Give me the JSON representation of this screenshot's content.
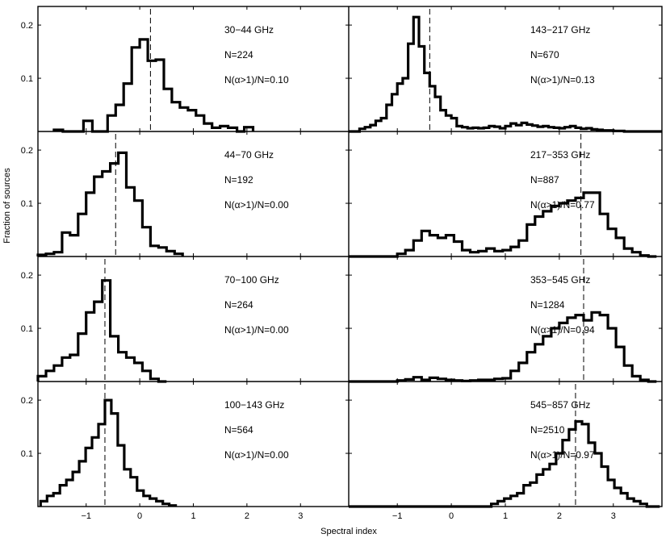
{
  "figure": {
    "ylabel": "Fraction of sources",
    "xlabel": "Spectral index",
    "left_x_ticks": [
      "−1",
      "0",
      "1",
      "2",
      "3"
    ],
    "right_x_ticks": [
      "−1",
      "0",
      "1",
      "2",
      "3"
    ],
    "y_ticks": [
      "0.1",
      "0.2"
    ]
  },
  "chart_data": [
    {
      "type": "bar",
      "title": "30−44 GHz",
      "n_label": "N=224",
      "frac_label": "N(α>1)/N=0.10",
      "median": 0.2,
      "xlim": [
        -1.9,
        3.9
      ],
      "ylim": [
        0,
        0.235
      ],
      "bin_width": 0.165,
      "bins_start": [
        -1.6,
        -1.05,
        -0.6,
        -0.45,
        -0.3,
        -0.15,
        0.0,
        0.15,
        0.3,
        0.45,
        0.6,
        0.75,
        0.9,
        1.05,
        1.2,
        1.35,
        1.5,
        1.65,
        1.95
      ],
      "values": [
        0.003,
        0.02,
        0.03,
        0.05,
        0.09,
        0.158,
        0.173,
        0.133,
        0.135,
        0.08,
        0.055,
        0.045,
        0.04,
        0.03,
        0.015,
        0.007,
        0.01,
        0.007,
        0.008
      ]
    },
    {
      "type": "bar",
      "title": "143−217 GHz",
      "n_label": "N=670",
      "frac_label": "N(α>1)/N=0.13",
      "median": -0.4,
      "xlim": [
        -1.9,
        3.9
      ],
      "ylim": [
        0,
        0.235
      ],
      "bin_width": 0.1,
      "bins_start": [
        -1.9,
        -1.8,
        -1.7,
        -1.6,
        -1.5,
        -1.4,
        -1.3,
        -1.2,
        -1.1,
        -1.0,
        -0.9,
        -0.8,
        -0.7,
        -0.6,
        -0.5,
        -0.4,
        -0.3,
        -0.2,
        -0.1,
        0.0,
        0.1,
        0.2,
        0.3,
        0.4,
        0.5,
        0.6,
        0.7,
        0.8,
        0.9,
        1.0,
        1.1,
        1.2,
        1.3,
        1.4,
        1.5,
        1.6,
        1.7,
        1.8,
        1.9,
        2.0,
        2.1,
        2.2,
        2.3,
        2.4,
        2.5,
        2.6,
        2.7,
        2.8,
        2.9,
        3.0,
        3.1,
        3.2,
        3.3,
        3.4,
        3.5,
        3.6,
        3.7,
        3.8
      ],
      "values": [
        0.0,
        0.0,
        0.005,
        0.008,
        0.012,
        0.02,
        0.025,
        0.05,
        0.07,
        0.09,
        0.1,
        0.165,
        0.215,
        0.16,
        0.11,
        0.085,
        0.065,
        0.04,
        0.03,
        0.025,
        0.01,
        0.008,
        0.006,
        0.007,
        0.006,
        0.007,
        0.01,
        0.009,
        0.006,
        0.01,
        0.015,
        0.012,
        0.016,
        0.013,
        0.011,
        0.009,
        0.01,
        0.008,
        0.007,
        0.006,
        0.008,
        0.01,
        0.007,
        0.005,
        0.006,
        0.004,
        0.003,
        0.002,
        0.002,
        0.001,
        0.001,
        0.0,
        0.0,
        0.0,
        0.0,
        0.0,
        0.0,
        0.0
      ]
    },
    {
      "type": "bar",
      "title": "44−70 GHz",
      "n_label": "N=192",
      "frac_label": "N(α>1)/N=0.00",
      "median": -0.45,
      "xlim": [
        -1.9,
        3.9
      ],
      "ylim": [
        0,
        0.235
      ],
      "bin_width": 0.15,
      "bins_start": [
        -1.9,
        -1.75,
        -1.6,
        -1.45,
        -1.3,
        -1.15,
        -1.0,
        -0.85,
        -0.7,
        -0.55,
        -0.4,
        -0.25,
        -0.1,
        0.05,
        0.2,
        0.35,
        0.5,
        0.65
      ],
      "values": [
        0.003,
        0.005,
        0.008,
        0.045,
        0.04,
        0.08,
        0.12,
        0.15,
        0.16,
        0.175,
        0.195,
        0.13,
        0.105,
        0.055,
        0.02,
        0.017,
        0.01,
        0.005
      ]
    },
    {
      "type": "bar",
      "title": "217−353 GHz",
      "n_label": "N=887",
      "frac_label": "N(α>1)/N=0.77",
      "median": 2.4,
      "xlim": [
        -1.9,
        3.9
      ],
      "ylim": [
        0,
        0.235
      ],
      "bin_width": 0.15,
      "bins_start": [
        -1.9,
        -1.75,
        -1.6,
        -1.45,
        -1.3,
        -1.15,
        -1.0,
        -0.85,
        -0.7,
        -0.55,
        -0.4,
        -0.25,
        -0.1,
        0.05,
        0.2,
        0.35,
        0.5,
        0.65,
        0.8,
        0.95,
        1.1,
        1.25,
        1.4,
        1.55,
        1.7,
        1.85,
        2.0,
        2.15,
        2.3,
        2.45,
        2.6,
        2.75,
        2.9,
        3.05,
        3.2,
        3.35,
        3.5,
        3.65
      ],
      "values": [
        0.0,
        0.0,
        0.0,
        0.0,
        0.0,
        0.0,
        0.005,
        0.012,
        0.03,
        0.048,
        0.04,
        0.035,
        0.04,
        0.028,
        0.012,
        0.008,
        0.01,
        0.015,
        0.01,
        0.012,
        0.018,
        0.03,
        0.06,
        0.075,
        0.085,
        0.095,
        0.1,
        0.105,
        0.11,
        0.12,
        0.12,
        0.08,
        0.052,
        0.035,
        0.015,
        0.008,
        0.002,
        0.0
      ]
    },
    {
      "type": "bar",
      "title": "70−100 GHz",
      "n_label": "N=264",
      "frac_label": "N(α>1)/N=0.00",
      "median": -0.65,
      "xlim": [
        -1.9,
        3.9
      ],
      "ylim": [
        0,
        0.235
      ],
      "bin_width": 0.15,
      "bins_start": [
        -1.9,
        -1.75,
        -1.6,
        -1.45,
        -1.3,
        -1.15,
        -1.0,
        -0.85,
        -0.7,
        -0.55,
        -0.4,
        -0.25,
        -0.1,
        0.05,
        0.2,
        0.35
      ],
      "values": [
        0.01,
        0.02,
        0.03,
        0.045,
        0.05,
        0.09,
        0.13,
        0.15,
        0.19,
        0.085,
        0.055,
        0.045,
        0.035,
        0.02,
        0.005,
        0.0
      ]
    },
    {
      "type": "bar",
      "title": "353−545 GHz",
      "n_label": "N=1284",
      "frac_label": "N(α>1)/N=0.94",
      "median": 2.45,
      "xlim": [
        -1.9,
        3.9
      ],
      "ylim": [
        0,
        0.235
      ],
      "bin_width": 0.15,
      "bins_start": [
        -1.9,
        -1.75,
        -1.6,
        -1.45,
        -1.3,
        -1.15,
        -1.0,
        -0.85,
        -0.7,
        -0.55,
        -0.4,
        -0.25,
        -0.1,
        0.05,
        0.2,
        0.35,
        0.5,
        0.65,
        0.8,
        0.95,
        1.1,
        1.25,
        1.4,
        1.55,
        1.7,
        1.85,
        2.0,
        2.15,
        2.3,
        2.45,
        2.6,
        2.75,
        2.9,
        3.05,
        3.2,
        3.35,
        3.5,
        3.65
      ],
      "values": [
        0.0,
        0.0,
        0.0,
        0.0,
        0.0,
        0.0,
        0.002,
        0.004,
        0.008,
        0.003,
        0.007,
        0.005,
        0.003,
        0.002,
        0.001,
        0.002,
        0.003,
        0.003,
        0.005,
        0.006,
        0.02,
        0.035,
        0.055,
        0.07,
        0.085,
        0.1,
        0.11,
        0.12,
        0.125,
        0.115,
        0.13,
        0.125,
        0.1,
        0.065,
        0.03,
        0.01,
        0.003,
        0.0
      ]
    },
    {
      "type": "bar",
      "title": "100−143 GHz",
      "n_label": "N=564",
      "frac_label": "N(α>1)/N=0.00",
      "median": -0.65,
      "xlim": [
        -1.9,
        3.9
      ],
      "ylim": [
        0,
        0.235
      ],
      "bin_width": 0.12,
      "bins_start": [
        -1.85,
        -1.73,
        -1.61,
        -1.49,
        -1.37,
        -1.25,
        -1.13,
        -1.01,
        -0.89,
        -0.77,
        -0.65,
        -0.53,
        -0.41,
        -0.29,
        -0.17,
        -0.05,
        0.07,
        0.19,
        0.31,
        0.43,
        0.55
      ],
      "values": [
        0.01,
        0.02,
        0.025,
        0.04,
        0.05,
        0.065,
        0.085,
        0.11,
        0.13,
        0.155,
        0.2,
        0.175,
        0.115,
        0.07,
        0.055,
        0.03,
        0.02,
        0.015,
        0.01,
        0.005,
        0.002
      ]
    },
    {
      "type": "bar",
      "title": "545−857 GHz",
      "n_label": "N=2510",
      "frac_label": "N(α>1)/N=0.97",
      "median": 2.3,
      "xlim": [
        -1.9,
        3.9
      ],
      "ylim": [
        0,
        0.235
      ],
      "bin_width": 0.12,
      "bins_start": [
        -1.9,
        -1.78,
        -1.66,
        -1.54,
        -1.42,
        -1.3,
        -1.18,
        -1.06,
        -0.94,
        -0.82,
        -0.7,
        -0.58,
        -0.46,
        -0.34,
        -0.22,
        -0.1,
        0.02,
        0.14,
        0.26,
        0.38,
        0.5,
        0.62,
        0.74,
        0.86,
        0.98,
        1.1,
        1.22,
        1.34,
        1.46,
        1.58,
        1.7,
        1.82,
        1.94,
        2.06,
        2.18,
        2.3,
        2.42,
        2.54,
        2.66,
        2.78,
        2.9,
        3.02,
        3.14,
        3.26,
        3.38,
        3.5,
        3.62,
        3.74
      ],
      "values": [
        0.0,
        0.0,
        0.0,
        0.0,
        0.0,
        0.0,
        0.0,
        0.0,
        0.0,
        0.0,
        0.0,
        0.0,
        0.0,
        0.0,
        0.0,
        0.0,
        0.0,
        0.0,
        0.0,
        0.0,
        0.0,
        0.0,
        0.005,
        0.01,
        0.015,
        0.02,
        0.025,
        0.04,
        0.045,
        0.06,
        0.07,
        0.08,
        0.1,
        0.125,
        0.145,
        0.16,
        0.155,
        0.12,
        0.1,
        0.075,
        0.05,
        0.035,
        0.025,
        0.015,
        0.01,
        0.005,
        0.0,
        0.0
      ]
    }
  ]
}
